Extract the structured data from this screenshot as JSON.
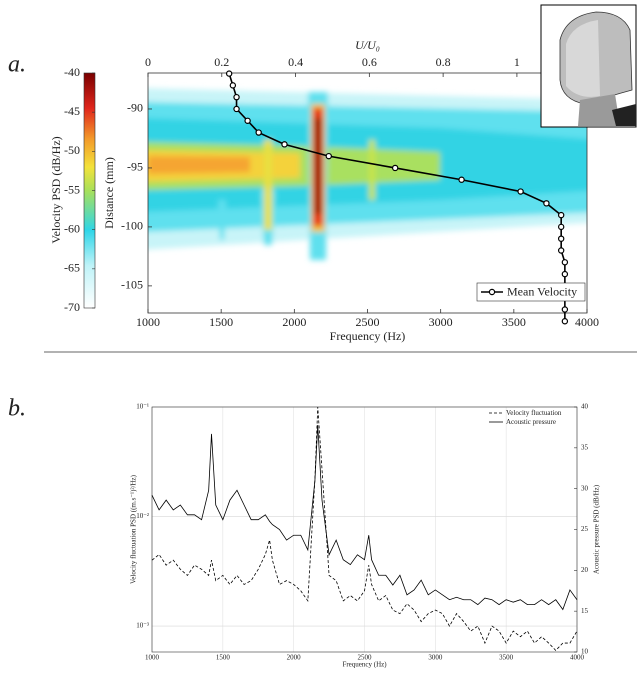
{
  "chart_data": [
    {
      "type": "line",
      "panel_label": "a.",
      "xlabel": "Frequency (Hz)",
      "xlim": [
        1000,
        4000
      ],
      "xticks": [
        1000,
        1500,
        2000,
        2500,
        3000,
        3500,
        4000
      ],
      "ylabel": "Distance (mm)",
      "ylim": [
        -107.3,
        -86.95
      ],
      "yticks": [
        -90,
        -95,
        -100,
        -105
      ],
      "x2label": "U/U₀",
      "x2lim": [
        0,
        1.19
      ],
      "x2ticks": [
        0,
        0.2,
        0.4,
        0.6,
        0.8,
        1
      ],
      "colorbar": {
        "label": "Velocity PSD (dB/Hz)",
        "clim": [
          -70,
          -40
        ],
        "ticks": [
          -40,
          -45,
          -50,
          -55,
          -60,
          -65,
          -70
        ]
      },
      "legend": "lower right",
      "series": [
        {
          "name": "Mean Velocity",
          "color": "#000000",
          "axis": "x2",
          "x": [
            0.22,
            0.23,
            0.24,
            0.24,
            0.27,
            0.3,
            0.37,
            0.49,
            0.67,
            0.85,
            1.01,
            1.08,
            1.12,
            1.12,
            1.12,
            1.12,
            1.13,
            1.13,
            1.13,
            1.13,
            1.13,
            1.13
          ],
          "y": [
            -87,
            -88,
            -89,
            -90,
            -91,
            -92,
            -93,
            -94,
            -95,
            -96,
            -97,
            -98,
            -99,
            -100,
            -101,
            -102,
            -103,
            -104,
            -105,
            -106,
            -107,
            -108
          ]
        }
      ]
    },
    {
      "type": "line",
      "panel_label": "b.",
      "xlabel": "Frequency (Hz)",
      "xlim": [
        1000,
        4000
      ],
      "xticks": [
        1000,
        1500,
        2000,
        2500,
        3000,
        3500,
        4000
      ],
      "ylabel": "Velocity fluctuation PSD ((m.s⁻¹)²/Hz)",
      "yscale": "log",
      "ylim": [
        0.00058,
        0.1
      ],
      "yticks": [
        {
          "value": 0.001,
          "label": "10⁻³"
        },
        {
          "value": 0.01,
          "label": "10⁻²"
        },
        {
          "value": 0.1,
          "label": "10⁻¹"
        }
      ],
      "y2label": "Acoustic pressure PSD (dB/Hz)",
      "y2lim": [
        10,
        40
      ],
      "y2ticks": [
        10,
        15,
        20,
        25,
        30,
        35,
        40
      ],
      "grid": true,
      "legend": "upper right",
      "x": [
        1000,
        1050,
        1100,
        1150,
        1200,
        1250,
        1300,
        1350,
        1400,
        1420,
        1450,
        1500,
        1550,
        1600,
        1650,
        1700,
        1750,
        1800,
        1830,
        1850,
        1900,
        1950,
        2000,
        2050,
        2100,
        2150,
        2170,
        2200,
        2250,
        2300,
        2350,
        2400,
        2450,
        2500,
        2530,
        2550,
        2600,
        2650,
        2700,
        2750,
        2800,
        2850,
        2900,
        2950,
        3000,
        3050,
        3100,
        3150,
        3200,
        3250,
        3300,
        3350,
        3400,
        3450,
        3500,
        3550,
        3600,
        3650,
        3700,
        3750,
        3800,
        3850,
        3900,
        3950,
        4000
      ],
      "series": [
        {
          "name": "Velocity fluctuation",
          "color": "#000000",
          "dash": "dashed",
          "values": [
            0.004,
            0.0045,
            0.0036,
            0.004,
            0.0033,
            0.0029,
            0.0036,
            0.0033,
            0.0029,
            0.004,
            0.0026,
            0.0029,
            0.0024,
            0.0029,
            0.0024,
            0.0026,
            0.0033,
            0.0045,
            0.0061,
            0.004,
            0.0024,
            0.0026,
            0.0024,
            0.0021,
            0.0017,
            0.022,
            0.1,
            0.027,
            0.0029,
            0.0026,
            0.0017,
            0.0019,
            0.0017,
            0.0021,
            0.0036,
            0.0024,
            0.0017,
            0.0019,
            0.0014,
            0.0013,
            0.0016,
            0.0014,
            0.0011,
            0.0013,
            0.0014,
            0.0013,
            0.001,
            0.0013,
            0.0011,
            0.0009,
            0.001,
            0.0007,
            0.001,
            0.0009,
            0.0007,
            0.0009,
            0.0008,
            0.0009,
            0.0007,
            0.0008,
            0.0007,
            0.0006,
            0.0007,
            0.0007,
            0.0009
          ]
        },
        {
          "name": "Acoustic pressure",
          "color": "#000000",
          "dash": "solid",
          "axis": "y2",
          "values": [
            29.2,
            27.4,
            28.6,
            27.4,
            28.0,
            26.8,
            26.8,
            26.2,
            29.8,
            36.7,
            28.0,
            26.2,
            28.6,
            29.8,
            28.0,
            26.2,
            26.2,
            26.8,
            26.0,
            25.6,
            25.0,
            23.7,
            24.3,
            24.3,
            22.5,
            31.0,
            37.8,
            28.6,
            21.9,
            23.7,
            21.3,
            20.7,
            21.9,
            21.3,
            24.3,
            21.3,
            19.4,
            19.4,
            18.2,
            19.4,
            17.0,
            17.6,
            18.8,
            17.0,
            17.6,
            17.0,
            16.4,
            16.7,
            16.4,
            16.4,
            15.8,
            16.6,
            16.4,
            15.8,
            16.4,
            16.1,
            16.4,
            15.8,
            15.8,
            16.4,
            15.8,
            16.4,
            15.2,
            17.6,
            16.4
          ]
        }
      ]
    }
  ]
}
